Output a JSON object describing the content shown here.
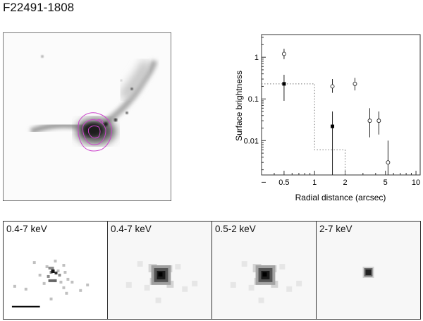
{
  "figure": {
    "object_name": "F22491-1808"
  },
  "panels": [
    {
      "label": "0.4-7 keV",
      "style": "raw-counts"
    },
    {
      "label": "0.4-7 keV",
      "style": "smoothed"
    },
    {
      "label": "0.5-2 keV",
      "style": "smoothed"
    },
    {
      "label": "2-7 keV",
      "style": "compact"
    }
  ],
  "colors": {
    "contour": "#cc44cc",
    "axis": "#333333",
    "model": "#777777"
  },
  "chart_data": {
    "type": "scatter",
    "title": "",
    "xlabel": "Radial distance (arcsec)",
    "ylabel": "Surface brightness",
    "xscale": "log",
    "yscale": "log",
    "xlim": [
      0.3,
      11
    ],
    "ylim": [
      0.0015,
      3.5
    ],
    "xticks": [
      {
        "value": 0.5,
        "label": "0.5"
      },
      {
        "value": 1,
        "label": "1"
      },
      {
        "value": 2,
        "label": "2"
      },
      {
        "value": 5,
        "label": "5"
      },
      {
        "value": 10,
        "label": "10"
      }
    ],
    "yticks": [
      {
        "value": 1,
        "label": "1"
      },
      {
        "value": 0.1,
        "label": "0.1"
      },
      {
        "value": 0.01,
        "label": "0.01"
      },
      {
        "value": 0.001,
        "label": ""
      }
    ],
    "grid": false,
    "series": [
      {
        "marker": "open-circle",
        "points": [
          {
            "x": 0.5,
            "y": 1.2,
            "ylo": 0.9,
            "yhi": 1.6
          },
          {
            "x": 1.5,
            "y": 0.2,
            "ylo": 0.14,
            "yhi": 0.3
          },
          {
            "x": 2.5,
            "y": 0.23,
            "ylo": 0.16,
            "yhi": 0.32
          },
          {
            "x": 3.5,
            "y": 0.03,
            "ylo": 0.012,
            "yhi": 0.06
          },
          {
            "x": 4.3,
            "y": 0.03,
            "ylo": 0.014,
            "yhi": 0.05
          },
          {
            "x": 5.3,
            "y": 0.003,
            "ylo": 0.0015,
            "yhi": 0.01
          }
        ]
      },
      {
        "marker": "filled-square",
        "points": [
          {
            "x": 0.5,
            "y": 0.23,
            "ylo": 0.09,
            "yhi": 0.38
          },
          {
            "x": 1.5,
            "y": 0.022,
            "ylo": 0.0015,
            "yhi": 0.05
          }
        ]
      }
    ],
    "model_steps": [
      {
        "x0": 0.3,
        "x1": 1.0,
        "y": 0.23
      },
      {
        "x0": 1.0,
        "x1": 2.0,
        "y": 0.006
      }
    ]
  }
}
